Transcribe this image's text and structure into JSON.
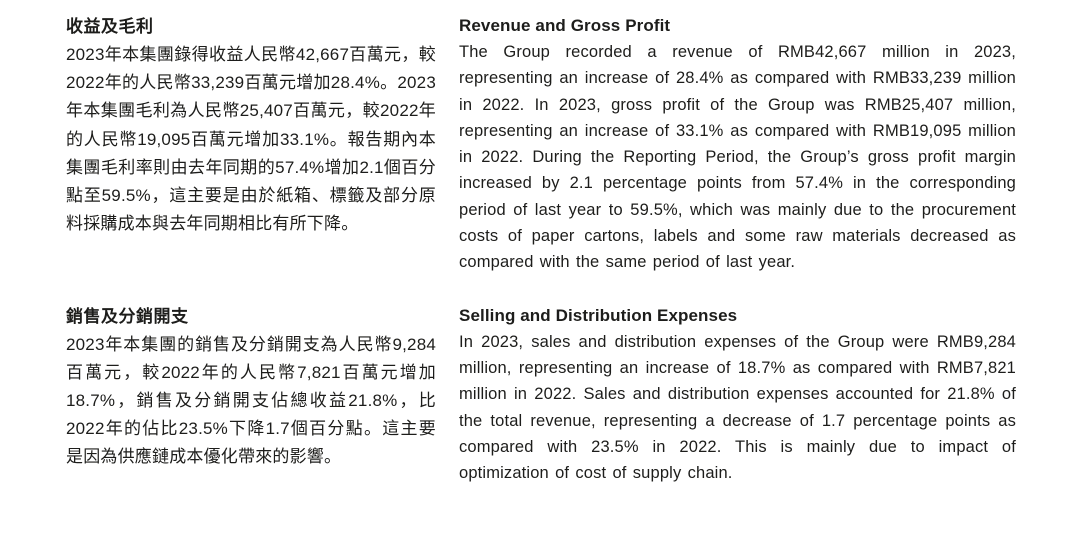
{
  "document": {
    "language_pair": "zh-en",
    "text_color": "#1d1d1b",
    "background_color": "#ffffff",
    "sections": [
      {
        "zh": {
          "heading": "收益及毛利",
          "body": "2023年本集團錄得收益人民幣42,667百萬元，較2022年的人民幣33,239百萬元增加28.4%。2023年本集團毛利為人民幣25,407百萬元，較2022年的人民幣19,095百萬元增加33.1%。報告期內本集團毛利率則由去年同期的57.4%增加2.1個百分點至59.5%，這主要是由於紙箱、標籤及部分原料採購成本與去年同期相比有所下降。"
        },
        "en": {
          "heading": "Revenue and Gross Profit",
          "body": "The Group recorded a revenue of RMB42,667 million in 2023, representing an increase of 28.4% as compared with RMB33,239 million in 2022. In 2023, gross profit of the Group was RMB25,407 million, representing an increase of 33.1% as compared with RMB19,095 million in 2022. During the Reporting Period, the Group’s gross profit margin increased by 2.1 percentage points from 57.4% in the corresponding period of last year to 59.5%, which was mainly due to the procurement costs of paper cartons, labels and some raw materials decreased as compared with the same period of last year."
        }
      },
      {
        "zh": {
          "heading": "銷售及分銷開支",
          "body": "2023年本集團的銷售及分銷開支為人民幣9,284百萬元，較2022年的人民幣7,821百萬元增加18.7%，銷售及分銷開支佔總收益21.8%，比2022年的佔比23.5%下降1.7個百分點。這主要是因為供應鏈成本優化帶來的影響。"
        },
        "en": {
          "heading": "Selling and Distribution Expenses",
          "body": "In 2023, sales and distribution expenses of the Group were RMB9,284 million, representing an increase of 18.7% as compared with RMB7,821 million in 2022. Sales and distribution expenses accounted for 21.8% of the total revenue, representing a decrease of 1.7 percentage points as compared with 23.5% in 2022. This is mainly due to impact of optimization of cost of supply chain."
        }
      }
    ]
  }
}
